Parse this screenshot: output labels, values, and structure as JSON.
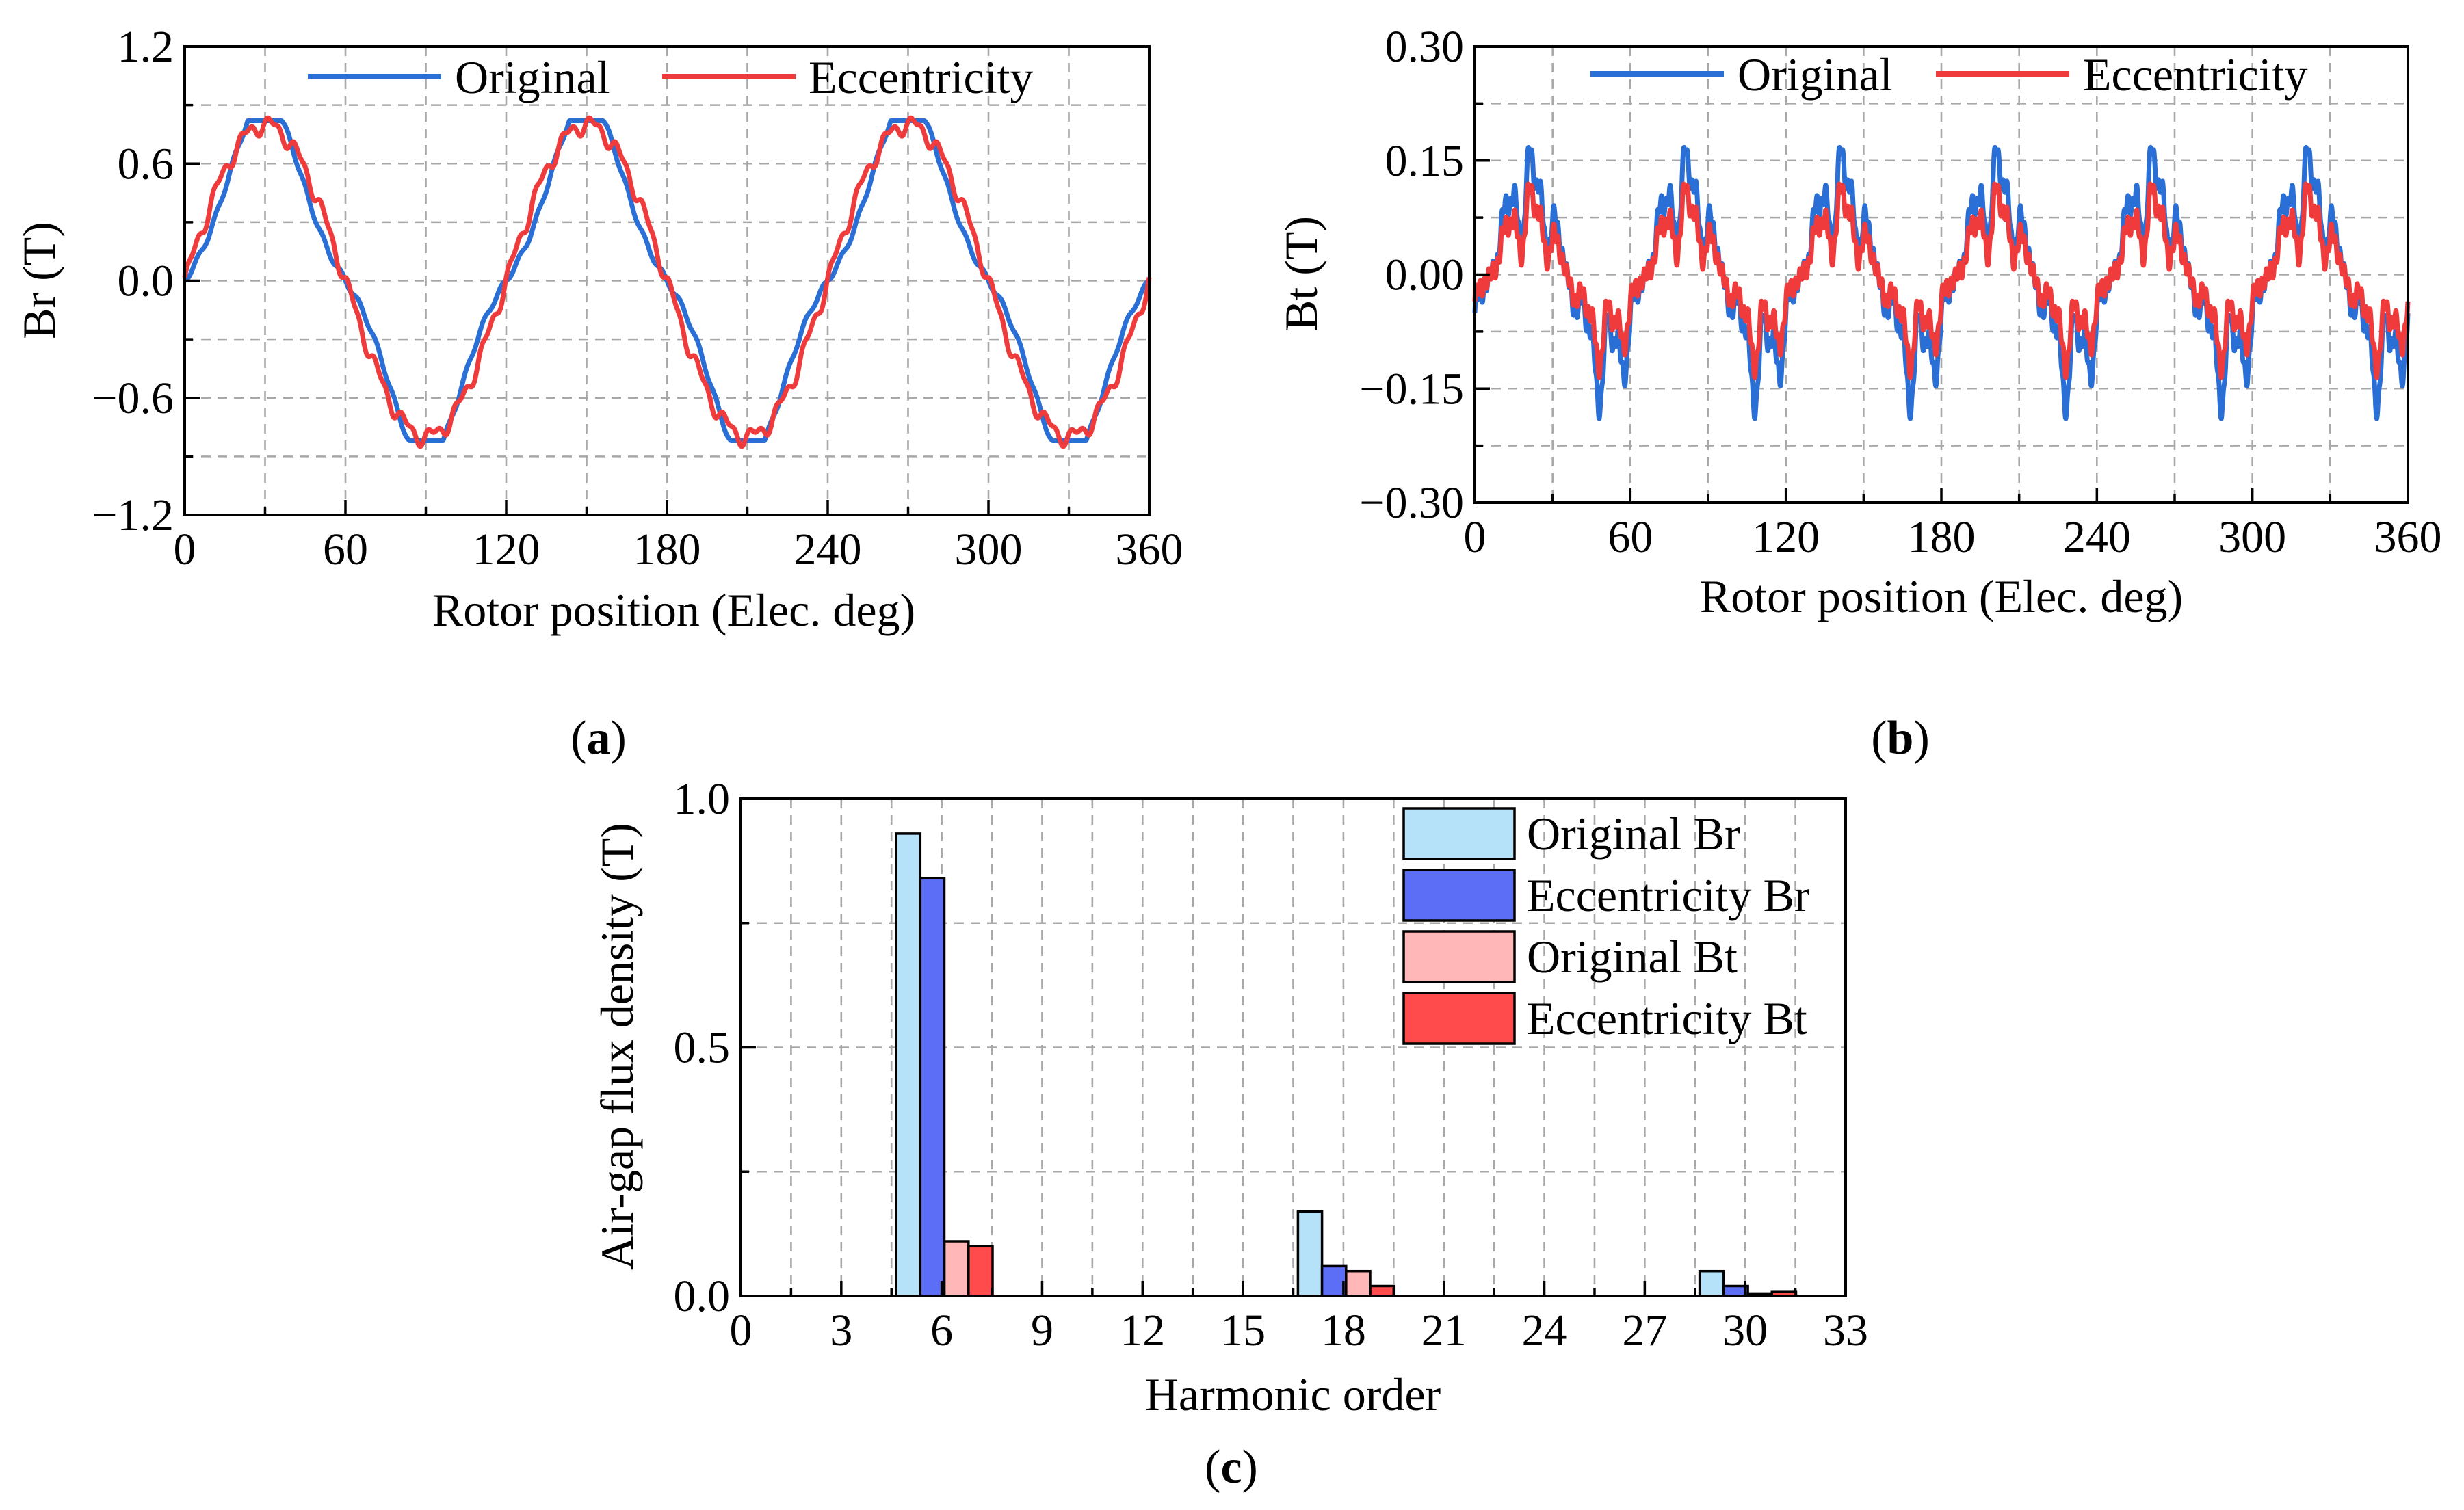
{
  "chart_data": [
    {
      "id": "a",
      "type": "line",
      "caption_letter": "a",
      "xlabel": "Rotor position (Elec. deg)",
      "ylabel": "Br (T)",
      "xlim": [
        0,
        360
      ],
      "ylim": [
        -1.2,
        1.2
      ],
      "xticks": [
        0,
        60,
        120,
        180,
        240,
        300,
        360
      ],
      "xtick_labels": [
        "0",
        "60",
        "120",
        "180",
        "240",
        "300",
        "360"
      ],
      "yticks": [
        -1.2,
        -0.6,
        0.0,
        0.6,
        1.2
      ],
      "ytick_labels": [
        "−1.2",
        "−0.6",
        "0.0",
        "0.6",
        "1.2"
      ],
      "grid": true,
      "legend_position": "top",
      "series": [
        {
          "name": "Original",
          "color": "#2a6fd6",
          "period_deg": 120,
          "shape": "flattop_sine",
          "peak": 0.82,
          "phase_peak_deg": 30
        },
        {
          "name": "Eccentricity",
          "color": "#ef3b3b",
          "period_deg": 120,
          "shape": "sine_with_ripple",
          "peak": 0.8,
          "phase_peak_deg": 30
        }
      ]
    },
    {
      "id": "b",
      "type": "line",
      "caption_letter": "b",
      "xlabel": "Rotor position (Elec. deg)",
      "ylabel": "Bt (T)",
      "xlim": [
        0,
        360
      ],
      "ylim": [
        -0.3,
        0.3
      ],
      "xticks": [
        0,
        60,
        120,
        180,
        240,
        300,
        360
      ],
      "xtick_labels": [
        "0",
        "60",
        "120",
        "180",
        "240",
        "300",
        "360"
      ],
      "yticks": [
        -0.3,
        -0.15,
        0.0,
        0.15,
        0.3
      ],
      "ytick_labels": [
        "−0.30",
        "−0.15",
        "0.00",
        "0.15",
        "0.30"
      ],
      "grid": true,
      "legend_position": "top",
      "series": [
        {
          "name": "Original",
          "color": "#2a6fd6",
          "period_deg": 60,
          "shape": "slot_ripple",
          "peak": 0.2
        },
        {
          "name": "Eccentricity",
          "color": "#ef3b3b",
          "period_deg": 60,
          "shape": "slot_ripple",
          "peak": 0.14
        }
      ]
    },
    {
      "id": "c",
      "type": "bar",
      "caption_letter": "c",
      "xlabel": "Harmonic order",
      "ylabel": "Air-gap flux density (T)",
      "xlim": [
        0,
        33
      ],
      "ylim": [
        0,
        1.0
      ],
      "xticks": [
        0,
        3,
        6,
        9,
        12,
        15,
        18,
        21,
        24,
        27,
        30,
        33
      ],
      "xtick_labels": [
        "0",
        "3",
        "6",
        "9",
        "12",
        "15",
        "18",
        "21",
        "24",
        "27",
        "30",
        "33"
      ],
      "yticks": [
        0.0,
        0.5,
        1.0
      ],
      "ytick_labels": [
        "0.0",
        "0.5",
        "1.0"
      ],
      "grid": true,
      "legend_position": "top-right",
      "categories": [
        5,
        17,
        29
      ],
      "series": [
        {
          "name": "Original Br",
          "color": "#b5e2f8",
          "values": [
            0.93,
            0.17,
            0.05
          ]
        },
        {
          "name": "Eccentricity Br",
          "color": "#5b6ef5",
          "values": [
            0.84,
            0.06,
            0.02
          ]
        },
        {
          "name": "Original Bt",
          "color": "#ffb7b7",
          "values": [
            0.11,
            0.05,
            0.005
          ]
        },
        {
          "name": "Eccentricity Bt",
          "color": "#ff4b4b",
          "values": [
            0.1,
            0.02,
            0.008
          ]
        }
      ]
    }
  ]
}
